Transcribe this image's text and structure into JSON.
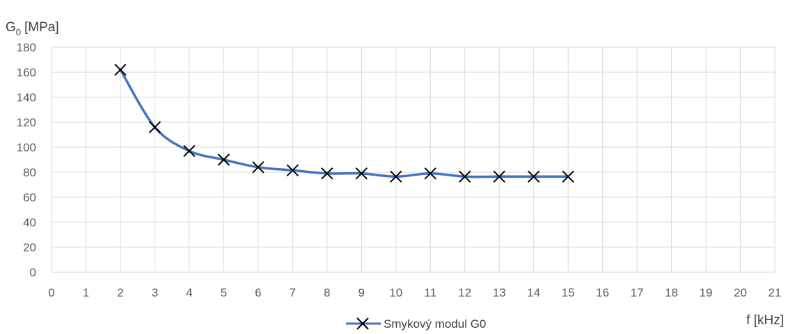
{
  "chart_data": {
    "type": "line",
    "title": "",
    "ylabel": {
      "main": "G",
      "sub": "0",
      "unit": "[MPa]"
    },
    "xlabel": "f [kHz]",
    "xlim": [
      0,
      21
    ],
    "ylim": [
      0,
      180
    ],
    "xticks": [
      0,
      1,
      2,
      3,
      4,
      5,
      6,
      7,
      8,
      9,
      10,
      11,
      12,
      13,
      14,
      15,
      16,
      17,
      18,
      19,
      20,
      21
    ],
    "yticks": [
      0,
      20,
      40,
      60,
      80,
      100,
      120,
      140,
      160,
      180
    ],
    "grid": true,
    "legend_position": "bottom",
    "series": [
      {
        "name": "Smykový modul G0",
        "color": "#4472C4",
        "marker": "x",
        "smooth": true,
        "x": [
          2,
          3,
          4,
          5,
          6,
          7,
          8,
          9,
          10,
          11,
          12,
          13,
          14,
          15
        ],
        "y": [
          162,
          116,
          97,
          90,
          84,
          81.5,
          79,
          79,
          76.5,
          79,
          76.5,
          76.5,
          76.5,
          76.5
        ]
      }
    ]
  }
}
